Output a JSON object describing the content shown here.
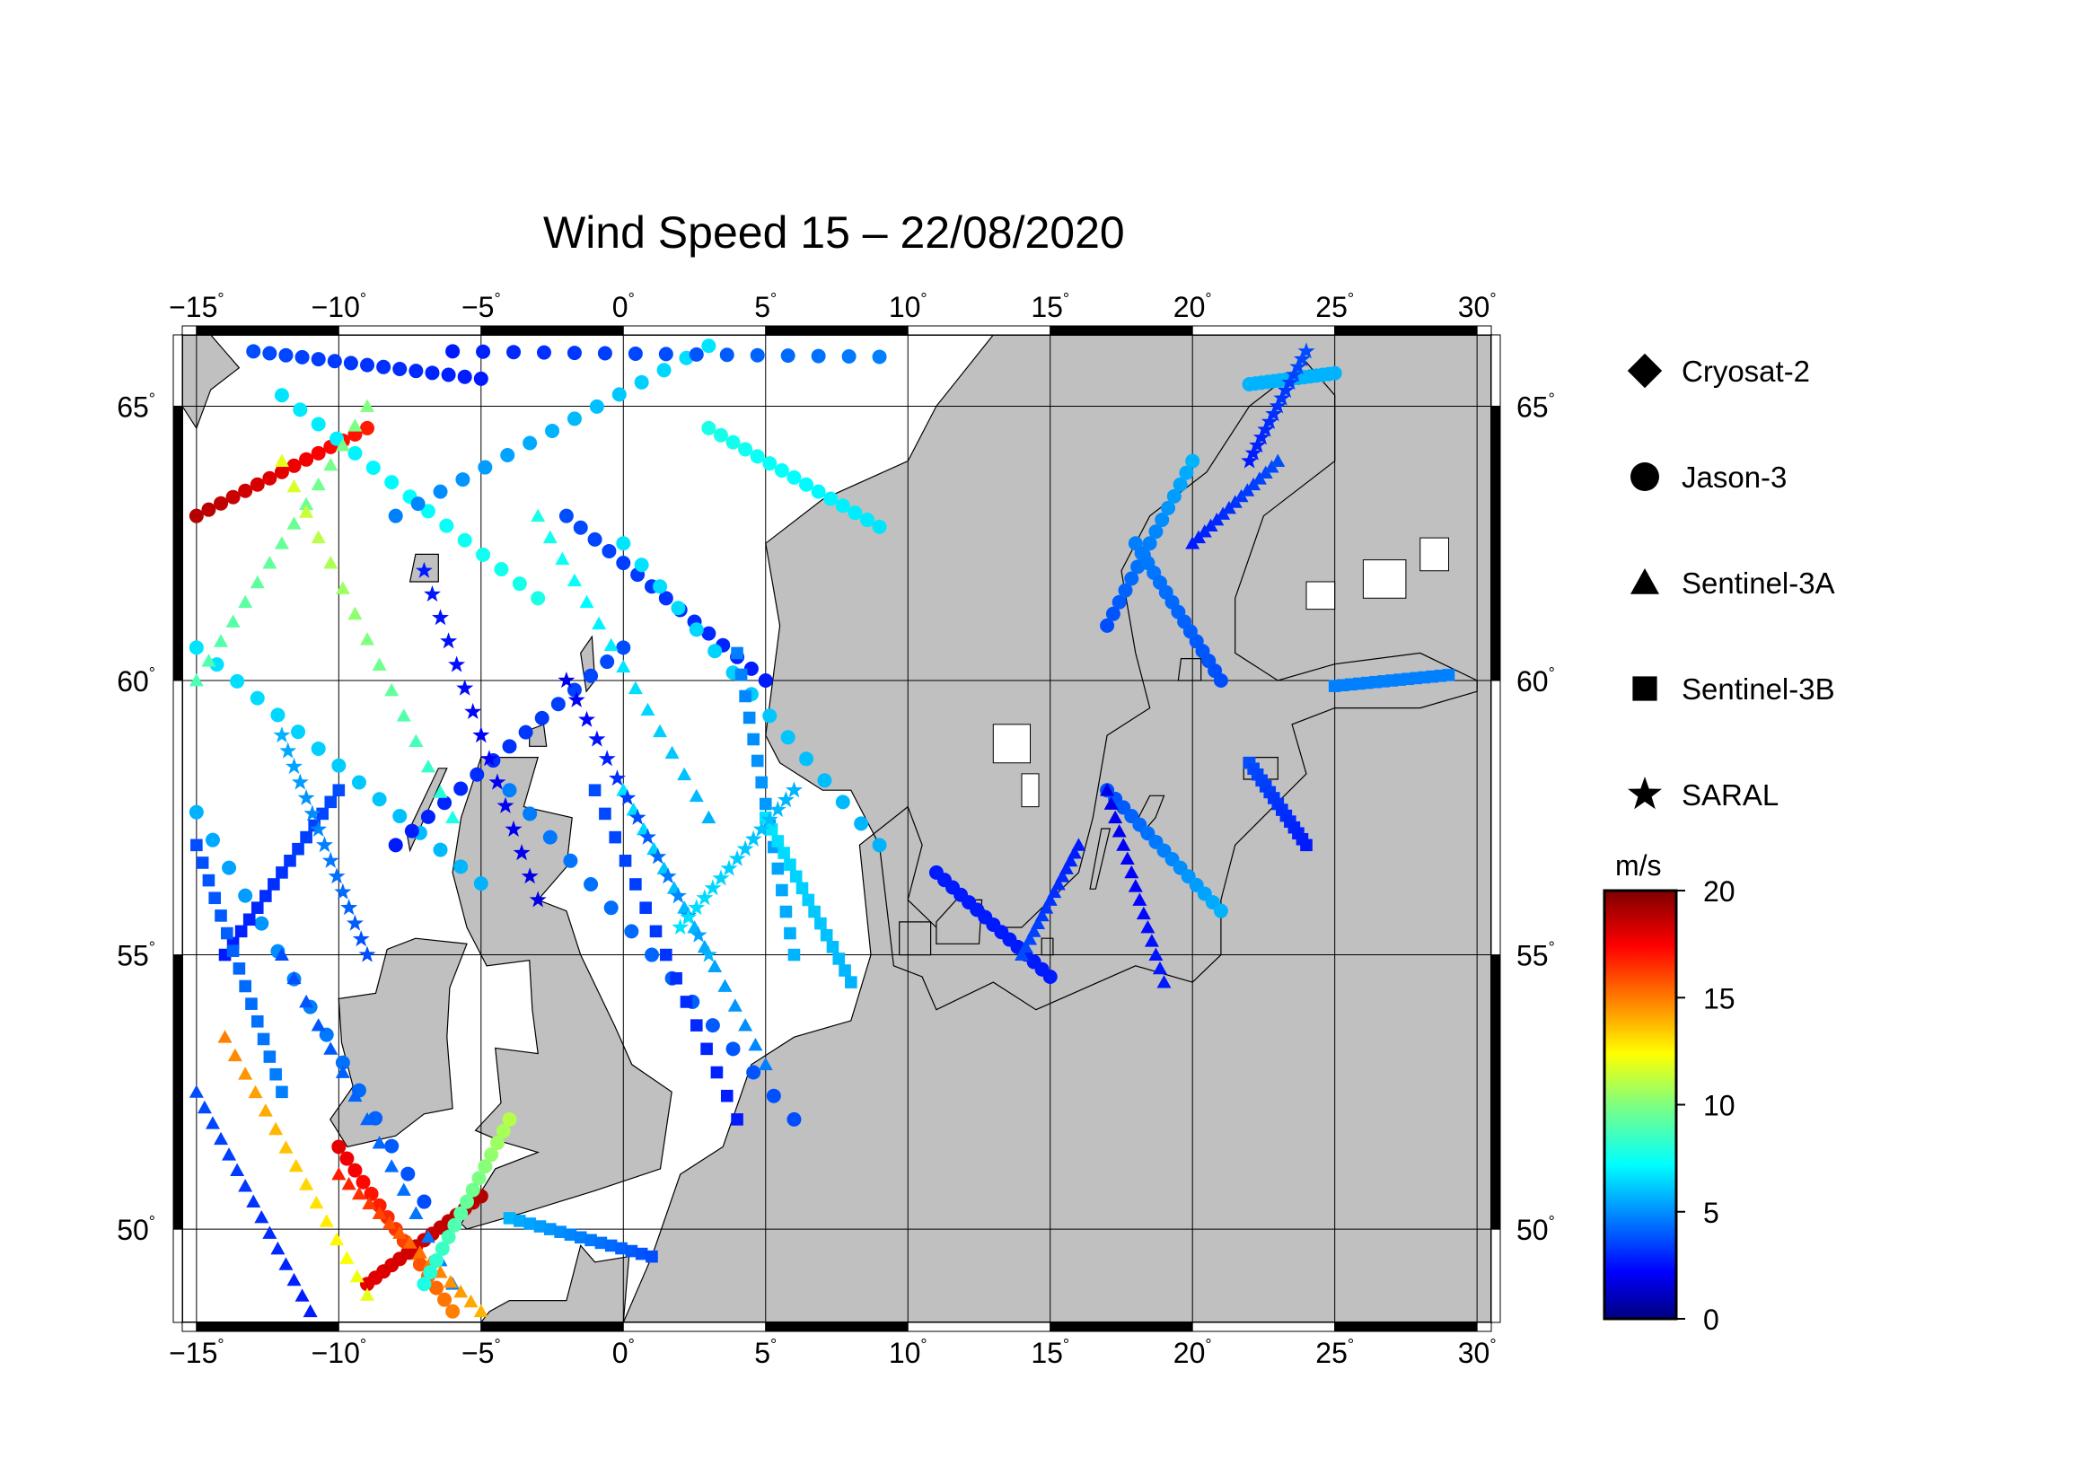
{
  "title": "Wind Speed 15 – 22/08/2020",
  "map": {
    "lon_range": [
      -15.5,
      30.5
    ],
    "lat_range": [
      48.3,
      66.3
    ],
    "lon_ticks": [
      {
        "value": -15,
        "label": "−15"
      },
      {
        "value": -10,
        "label": "−10"
      },
      {
        "value": -5,
        "label": "−5"
      },
      {
        "value": 0,
        "label": "0"
      },
      {
        "value": 5,
        "label": "5"
      },
      {
        "value": 10,
        "label": "10"
      },
      {
        "value": 15,
        "label": "15"
      },
      {
        "value": 20,
        "label": "20"
      },
      {
        "value": 25,
        "label": "25"
      },
      {
        "value": 30,
        "label": "30"
      }
    ],
    "lat_ticks": [
      {
        "value": 50,
        "label": "50"
      },
      {
        "value": 55,
        "label": "55"
      },
      {
        "value": 60,
        "label": "60"
      },
      {
        "value": 65,
        "label": "65"
      }
    ],
    "land_color": "#c0c0c0",
    "sea_color": "#ffffff",
    "grid": true
  },
  "legend": {
    "items": [
      {
        "label": "Cryosat-2",
        "shape": "diamond"
      },
      {
        "label": "Jason-3",
        "shape": "circle"
      },
      {
        "label": "Sentinel-3A",
        "shape": "triangle"
      },
      {
        "label": "Sentinel-3B",
        "shape": "square"
      },
      {
        "label": "SARAL",
        "shape": "star"
      }
    ]
  },
  "colorbar": {
    "unit": "m/s",
    "min": 0,
    "max": 20,
    "tick_labels": [
      {
        "value": 0,
        "label": "0"
      },
      {
        "value": 5,
        "label": "5"
      },
      {
        "value": 10,
        "label": "10"
      },
      {
        "value": 15,
        "label": "15"
      },
      {
        "value": 20,
        "label": "20"
      }
    ],
    "colormap": "jet"
  },
  "chart_data": {
    "type": "scatter",
    "x_unit": "longitude (deg)",
    "y_unit": "latitude (deg)",
    "value_unit": "m/s",
    "tracks": [
      {
        "satellite": "Jason-3",
        "start": [
          -15,
          63.0
        ],
        "end": [
          -9,
          64.6
        ],
        "wind_start": 19,
        "wind_end": 17
      },
      {
        "satellite": "Jason-3",
        "start": [
          -15,
          60.6
        ],
        "end": [
          -5,
          56.3
        ],
        "wind_start": 7,
        "wind_end": 6
      },
      {
        "satellite": "Jason-3",
        "start": [
          -12,
          65.2
        ],
        "end": [
          -3,
          61.5
        ],
        "wind_start": 7,
        "wind_end": 8
      },
      {
        "satellite": "Jason-3",
        "start": [
          -15,
          57.6
        ],
        "end": [
          -7,
          50.5
        ],
        "wind_start": 6,
        "wind_end": 4
      },
      {
        "satellite": "Jason-3",
        "start": [
          -8,
          63.0
        ],
        "end": [
          3,
          66.1
        ],
        "wind_start": 5,
        "wind_end": 7
      },
      {
        "satellite": "Jason-3",
        "start": [
          -2,
          63.0
        ],
        "end": [
          5,
          60.0
        ],
        "wind_start": 4,
        "wind_end": 3
      },
      {
        "satellite": "Jason-3",
        "start": [
          0,
          62.5
        ],
        "end": [
          9,
          57.0
        ],
        "wind_start": 7,
        "wind_end": 6
      },
      {
        "satellite": "Jason-3",
        "start": [
          3,
          64.6
        ],
        "end": [
          9,
          62.8
        ],
        "wind_start": 8,
        "wind_end": 7
      },
      {
        "satellite": "Jason-3",
        "start": [
          -8,
          57.0
        ],
        "end": [
          0,
          60.6
        ],
        "wind_start": 3,
        "wind_end": 4
      },
      {
        "satellite": "Jason-3",
        "start": [
          -4,
          58.0
        ],
        "end": [
          6,
          52.0
        ],
        "wind_start": 5,
        "wind_end": 4
      },
      {
        "satellite": "Jason-3",
        "start": [
          -10,
          51.5
        ],
        "end": [
          -6,
          48.5
        ],
        "wind_start": 18,
        "wind_end": 15
      },
      {
        "satellite": "Jason-3",
        "start": [
          -9,
          49.0
        ],
        "end": [
          -5,
          50.6
        ],
        "wind_start": 18,
        "wind_end": 19
      },
      {
        "satellite": "Jason-3",
        "start": [
          22,
          65.4
        ],
        "end": [
          25,
          65.6
        ],
        "wind_start": 6,
        "wind_end": 6
      },
      {
        "satellite": "Jason-3",
        "start": [
          17,
          61.0
        ],
        "end": [
          20,
          64.0
        ],
        "wind_start": 4,
        "wind_end": 6
      },
      {
        "satellite": "Jason-3",
        "start": [
          18,
          62.5
        ],
        "end": [
          21,
          60.0
        ],
        "wind_start": 5,
        "wind_end": 4
      },
      {
        "satellite": "Jason-3",
        "start": [
          17,
          58.0
        ],
        "end": [
          21,
          55.8
        ],
        "wind_start": 4,
        "wind_end": 6
      },
      {
        "satellite": "Jason-3",
        "start": [
          11,
          56.5
        ],
        "end": [
          15,
          54.6
        ],
        "wind_start": 3,
        "wind_end": 3
      },
      {
        "satellite": "Sentinel-3A",
        "start": [
          -14,
          53.5
        ],
        "end": [
          -9,
          48.8
        ],
        "wind_start": 15,
        "wind_end": 12
      },
      {
        "satellite": "Sentinel-3A",
        "start": [
          -15,
          60.0
        ],
        "end": [
          -9,
          65.0
        ],
        "wind_start": 9,
        "wind_end": 10
      },
      {
        "satellite": "Sentinel-3A",
        "start": [
          -12,
          64.0
        ],
        "end": [
          -6,
          57.5
        ],
        "wind_start": 12,
        "wind_end": 8
      },
      {
        "satellite": "Sentinel-3A",
        "start": [
          -15,
          52.5
        ],
        "end": [
          -11,
          48.5
        ],
        "wind_start": 4,
        "wind_end": 3
      },
      {
        "satellite": "Sentinel-3A",
        "start": [
          -3,
          63.0
        ],
        "end": [
          3,
          57.5
        ],
        "wind_start": 8,
        "wind_end": 6
      },
      {
        "satellite": "Sentinel-3A",
        "start": [
          0,
          58.0
        ],
        "end": [
          5,
          53.0
        ],
        "wind_start": 7,
        "wind_end": 5
      },
      {
        "satellite": "Sentinel-3A",
        "start": [
          17,
          58.0
        ],
        "end": [
          19,
          54.5
        ],
        "wind_start": 2,
        "wind_end": 3
      },
      {
        "satellite": "Sentinel-3A",
        "start": [
          20,
          62.5
        ],
        "end": [
          23,
          64.0
        ],
        "wind_start": 3,
        "wind_end": 4
      },
      {
        "satellite": "Sentinel-3A",
        "start": [
          14,
          55.0
        ],
        "end": [
          16,
          57.0
        ],
        "wind_start": 4,
        "wind_end": 3
      },
      {
        "satellite": "Sentinel-3B",
        "start": [
          -14,
          55.0
        ],
        "end": [
          -10,
          58.0
        ],
        "wind_start": 3,
        "wind_end": 4
      },
      {
        "satellite": "Sentinel-3B",
        "start": [
          -15,
          57.0
        ],
        "end": [
          -12,
          52.5
        ],
        "wind_start": 4,
        "wind_end": 5
      },
      {
        "satellite": "Sentinel-3B",
        "start": [
          -1,
          58.0
        ],
        "end": [
          4,
          52.0
        ],
        "wind_start": 4,
        "wind_end": 3
      },
      {
        "satellite": "Sentinel-3B",
        "start": [
          4,
          60.5
        ],
        "end": [
          6,
          55.0
        ],
        "wind_start": 5,
        "wind_end": 6
      },
      {
        "satellite": "Sentinel-3B",
        "start": [
          5,
          57.5
        ],
        "end": [
          8,
          54.5
        ],
        "wind_start": 7,
        "wind_end": 6
      },
      {
        "satellite": "Sentinel-3B",
        "start": [
          25,
          59.9
        ],
        "end": [
          29,
          60.1
        ],
        "wind_start": 5,
        "wind_end": 5
      },
      {
        "satellite": "Sentinel-3B",
        "start": [
          22,
          58.5
        ],
        "end": [
          24,
          57.0
        ],
        "wind_start": 4,
        "wind_end": 3
      },
      {
        "satellite": "SARAL",
        "start": [
          -7,
          62.0
        ],
        "end": [
          -3,
          56.0
        ],
        "wind_start": 3,
        "wind_end": 2
      },
      {
        "satellite": "SARAL",
        "start": [
          -2,
          60.0
        ],
        "end": [
          3,
          55.0
        ],
        "wind_start": 2,
        "wind_end": 6
      },
      {
        "satellite": "SARAL",
        "start": [
          2,
          55.5
        ],
        "end": [
          6,
          58.0
        ],
        "wind_start": 7,
        "wind_end": 6
      },
      {
        "satellite": "SARAL",
        "start": [
          -12,
          59.0
        ],
        "end": [
          -9,
          55.0
        ],
        "wind_start": 6,
        "wind_end": 4
      },
      {
        "satellite": "SARAL",
        "start": [
          22,
          64.0
        ],
        "end": [
          24,
          66.0
        ],
        "wind_start": 3,
        "wind_end": 4
      },
      {
        "satellite": "Sentinel-3A",
        "start": [
          -12,
          55.0
        ],
        "end": [
          -6,
          49.0
        ],
        "wind_start": 4,
        "wind_end": 5
      },
      {
        "satellite": "Sentinel-3A",
        "start": [
          -10,
          51.0
        ],
        "end": [
          -5,
          48.5
        ],
        "wind_start": 17,
        "wind_end": 14
      },
      {
        "satellite": "Jason-3",
        "start": [
          -7,
          49.0
        ],
        "end": [
          -4,
          52.0
        ],
        "wind_start": 8,
        "wind_end": 11
      },
      {
        "satellite": "Sentinel-3B",
        "start": [
          -4,
          50.2
        ],
        "end": [
          1,
          49.5
        ],
        "wind_start": 6,
        "wind_end": 4
      },
      {
        "satellite": "Jason-3",
        "start": [
          -6,
          66.0
        ],
        "end": [
          9,
          65.9
        ],
        "wind_start": 3,
        "wind_end": 5
      },
      {
        "satellite": "Jason-3",
        "start": [
          -13,
          66.0
        ],
        "end": [
          -5,
          65.5
        ],
        "wind_start": 4,
        "wind_end": 3
      }
    ]
  }
}
